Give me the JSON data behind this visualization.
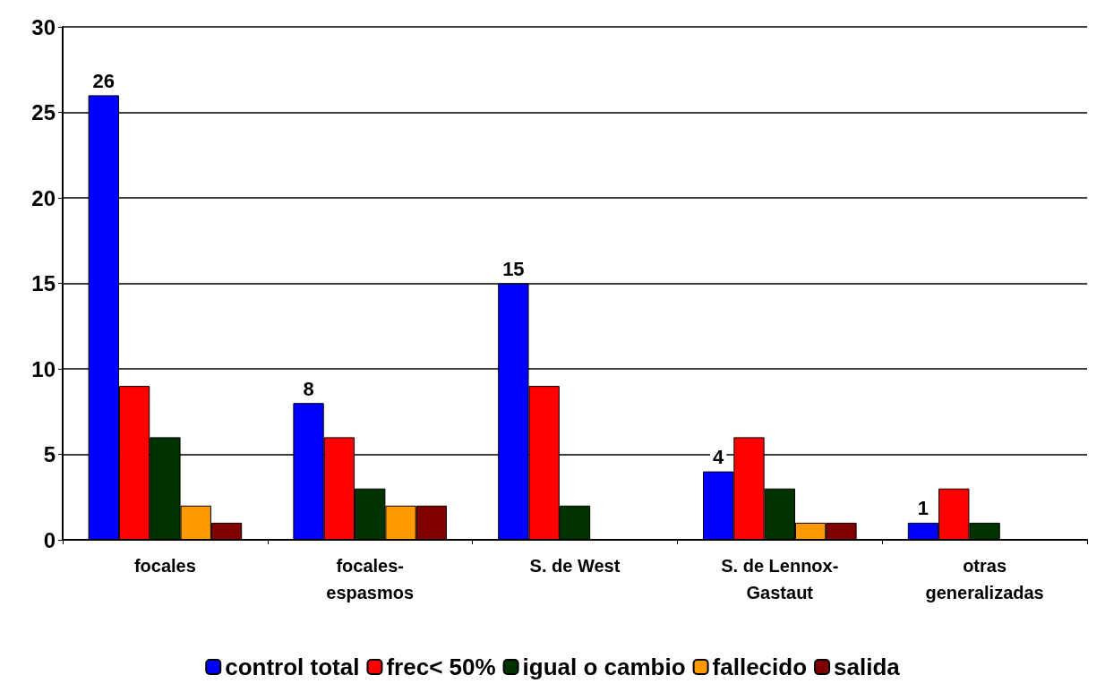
{
  "chart_data": {
    "type": "bar",
    "categories": [
      "focales",
      "focales-espasmos",
      "S. de West",
      "S. de Lennox-Gastaut",
      "otras generalizadas"
    ],
    "series": [
      {
        "name": "control total",
        "color": "#0000ff",
        "values": [
          26,
          8,
          15,
          4,
          1
        ],
        "value_labels": [
          "26",
          "8",
          "15",
          "4",
          "1"
        ]
      },
      {
        "name": "frec< 50%",
        "color": "#ff0000",
        "values": [
          9,
          6,
          9,
          6,
          3
        ]
      },
      {
        "name": "igual o cambio",
        "color": "#003300",
        "values": [
          6,
          3,
          2,
          3,
          1
        ]
      },
      {
        "name": "fallecido",
        "color": "#ff9900",
        "values": [
          2,
          2,
          0,
          1,
          0
        ]
      },
      {
        "name": "salida",
        "color": "#800000",
        "values": [
          1,
          2,
          0,
          1,
          0
        ]
      }
    ],
    "ylim": [
      0,
      30
    ],
    "yticks": [
      0,
      5,
      10,
      15,
      20,
      25,
      30
    ],
    "grid": "y",
    "legend": "bottom"
  }
}
